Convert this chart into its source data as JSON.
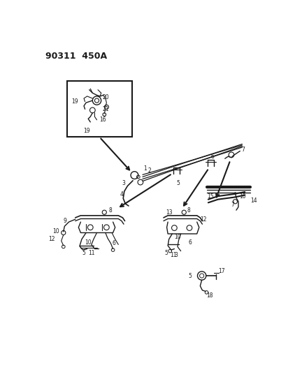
{
  "title": "90311  450A",
  "bg_color": "#ffffff",
  "line_color": "#1a1a1a",
  "fig_width": 4.22,
  "fig_height": 5.33,
  "dpi": 100
}
